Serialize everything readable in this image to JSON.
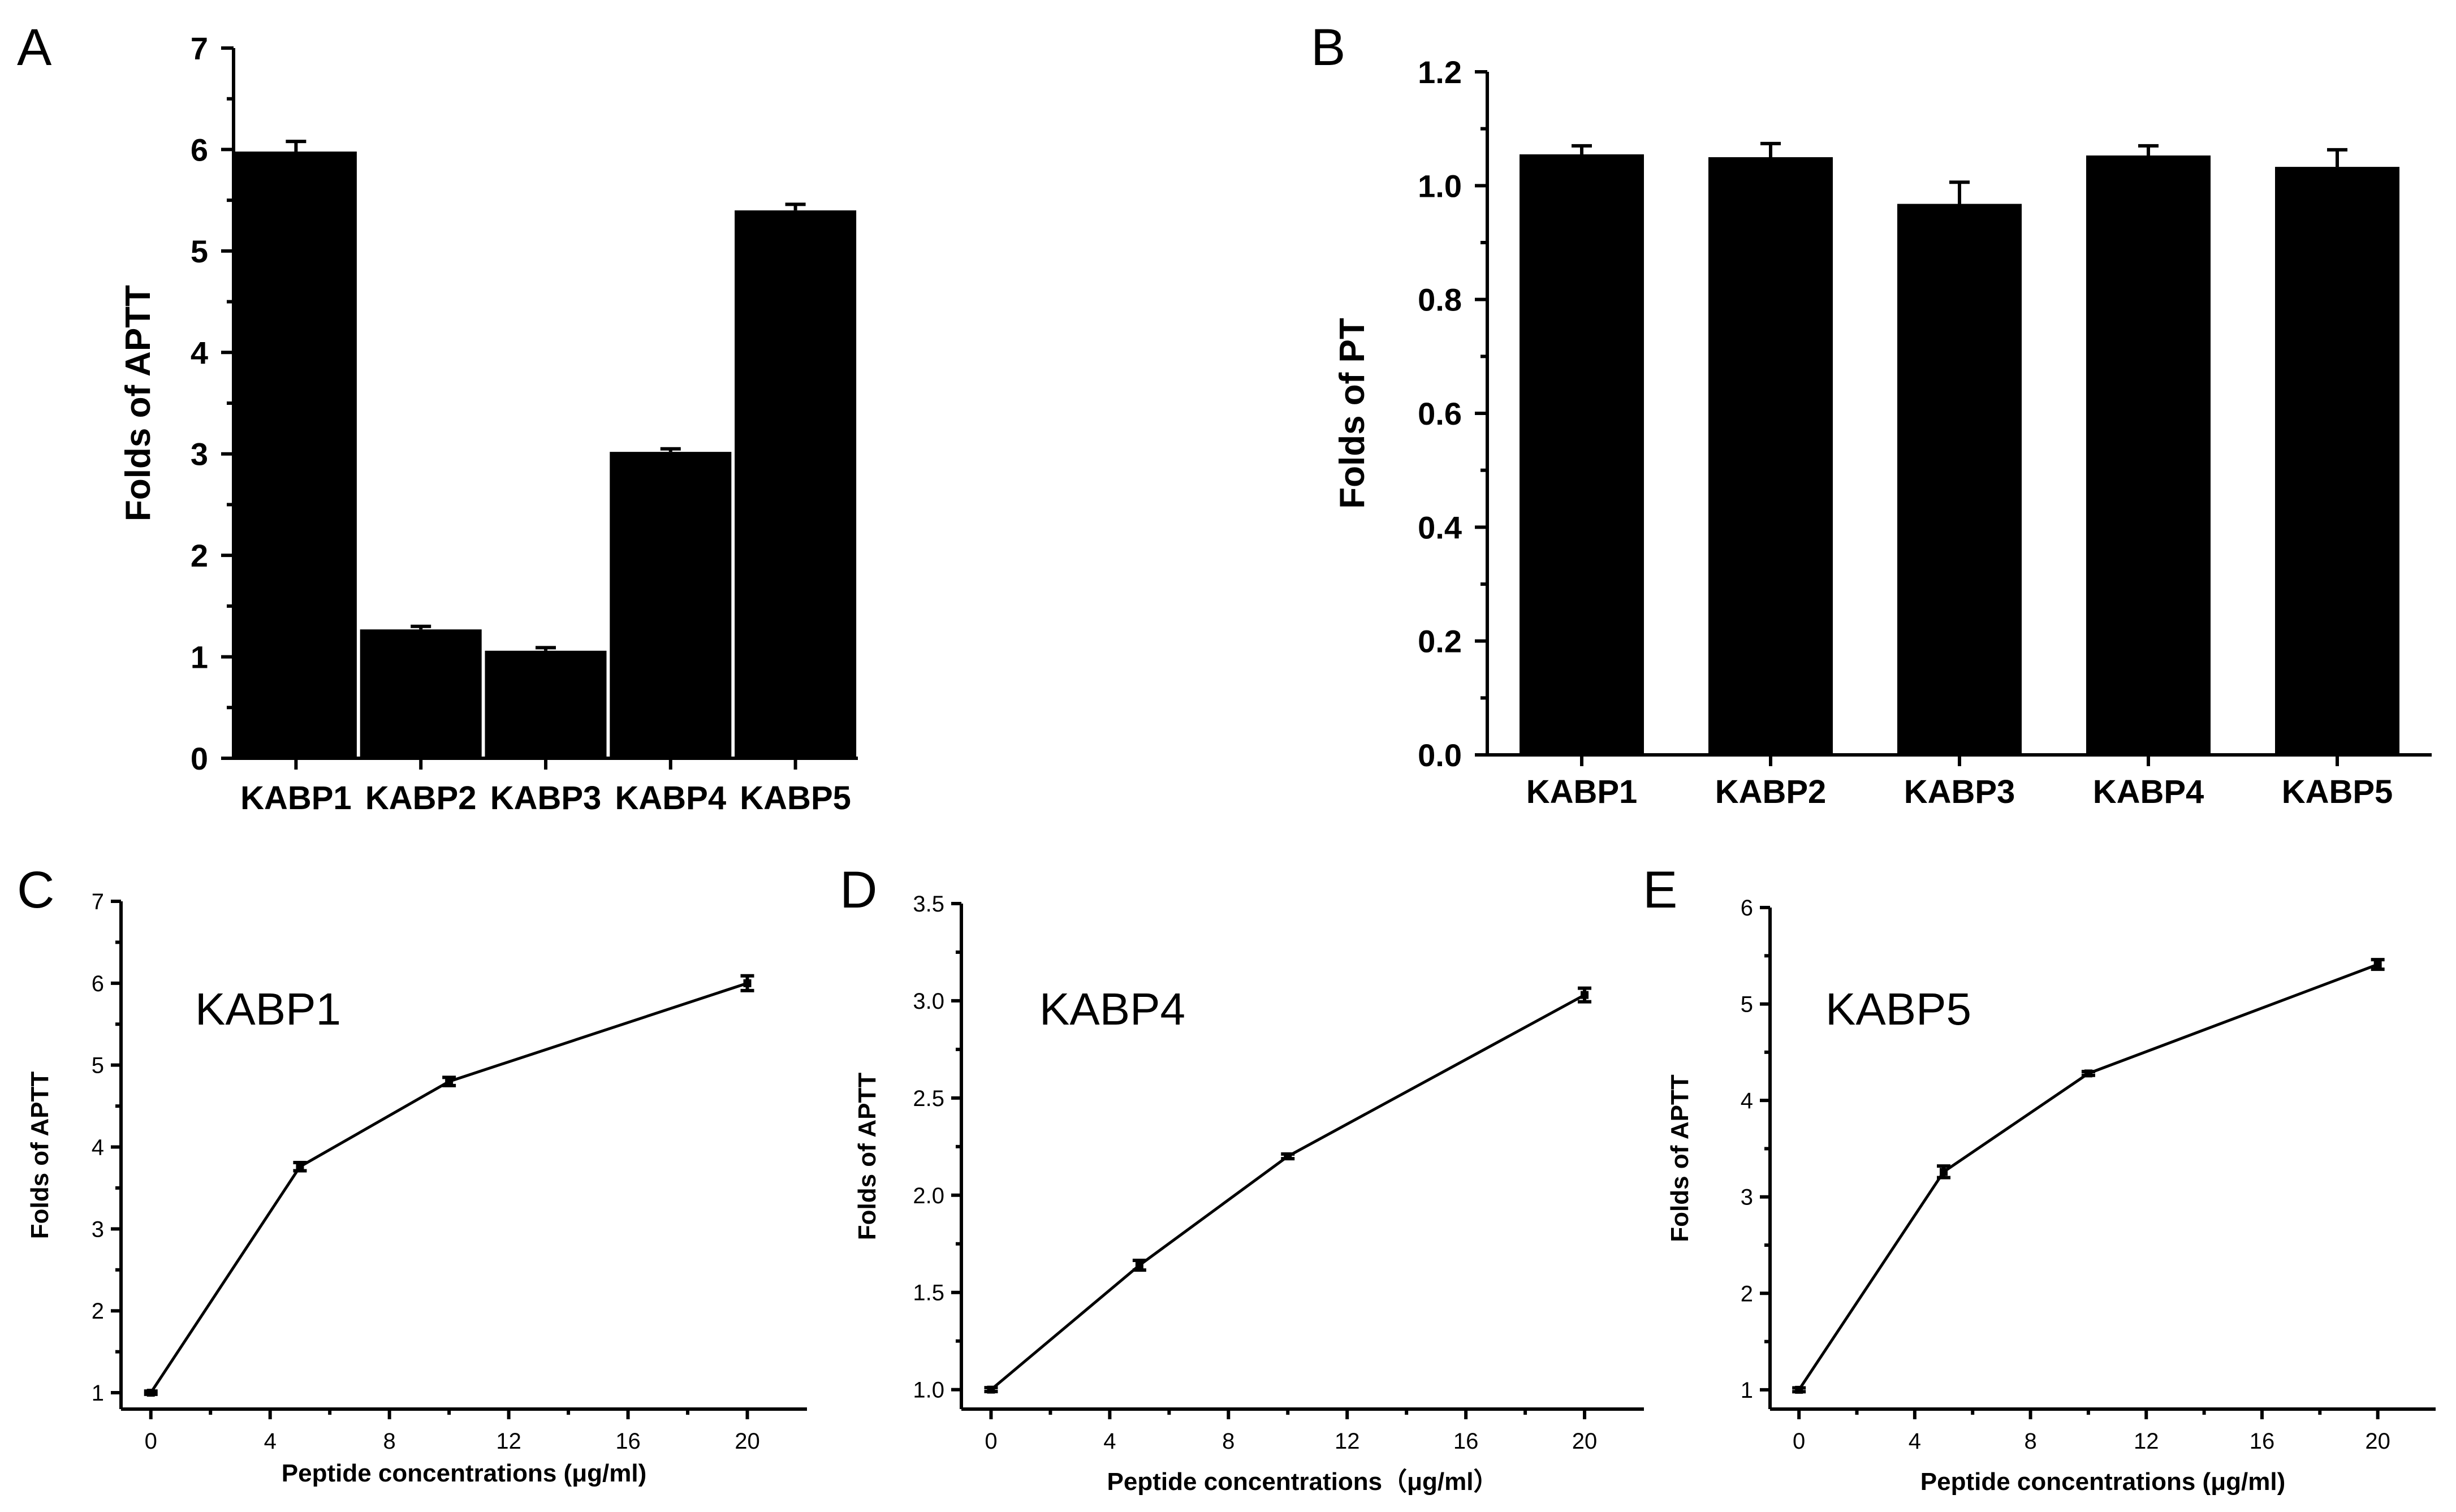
{
  "chart_data": [
    {
      "panel": "A",
      "type": "bar",
      "categories": [
        "KABP1",
        "KABP2",
        "KABP3",
        "KABP4",
        "KABP5"
      ],
      "values": [
        5.98,
        1.27,
        1.06,
        3.02,
        5.4
      ],
      "errors": [
        0.1,
        0.03,
        0.03,
        0.03,
        0.06
      ],
      "ylabel": "Folds of APTT",
      "xlabel": "",
      "ylim": [
        0,
        7
      ],
      "yticks": [
        "0",
        "1",
        "2",
        "3",
        "4",
        "5",
        "6",
        "7"
      ]
    },
    {
      "panel": "B",
      "type": "bar",
      "categories": [
        "KABP1",
        "KABP2",
        "KABP3",
        "KABP4",
        "KABP5"
      ],
      "values": [
        1.055,
        1.05,
        0.968,
        1.053,
        1.033
      ],
      "errors": [
        0.015,
        0.024,
        0.038,
        0.017,
        0.03
      ],
      "ylabel": "Folds of PT",
      "xlabel": "",
      "ylim": [
        0,
        1.2
      ],
      "yticks": [
        "0.0",
        "0.2",
        "0.4",
        "0.6",
        "0.8",
        "1.0",
        "1.2"
      ]
    },
    {
      "panel": "C",
      "type": "line",
      "series_name": "KABP1",
      "x": [
        0,
        5,
        10,
        20
      ],
      "y": [
        1.0,
        3.76,
        4.8,
        6.0
      ],
      "errors": [
        0.02,
        0.05,
        0.05,
        0.09
      ],
      "xlabel": "Peptide concentrations (μg/ml)",
      "ylabel": "Folds of APTT",
      "xlim": [
        -1,
        22
      ],
      "ylim": [
        0.8,
        7
      ],
      "xticks": [
        "0",
        "4",
        "8",
        "12",
        "16",
        "20"
      ],
      "yticks": [
        "1",
        "2",
        "3",
        "4",
        "5",
        "6",
        "7"
      ]
    },
    {
      "panel": "D",
      "type": "line",
      "series_name": "KABP4",
      "x": [
        0,
        5,
        10,
        20
      ],
      "y": [
        1.0,
        1.64,
        2.2,
        3.03
      ],
      "errors": [
        0.01,
        0.025,
        0.012,
        0.035
      ],
      "xlabel": "Peptide concentrations（μg/ml）",
      "ylabel": "Folds of APTT",
      "xlim": [
        -1,
        22
      ],
      "ylim": [
        0.9,
        3.5
      ],
      "xticks": [
        "0",
        "4",
        "8",
        "12",
        "16",
        "20"
      ],
      "yticks": [
        "1.0",
        "1.5",
        "2.0",
        "2.5",
        "3.0",
        "3.5"
      ]
    },
    {
      "panel": "E",
      "type": "line",
      "series_name": "KABP5",
      "x": [
        0,
        5,
        10,
        20
      ],
      "y": [
        1.0,
        3.26,
        4.28,
        5.41
      ],
      "errors": [
        0.02,
        0.06,
        0.02,
        0.05
      ],
      "xlabel": "Peptide concentrations (μg/ml)",
      "ylabel": "Folds of APTT",
      "xlim": [
        -1,
        22
      ],
      "ylim": [
        0.8,
        6
      ],
      "xticks": [
        "0",
        "4",
        "8",
        "12",
        "16",
        "20"
      ],
      "yticks": [
        "1",
        "2",
        "3",
        "4",
        "5",
        "6"
      ]
    }
  ]
}
